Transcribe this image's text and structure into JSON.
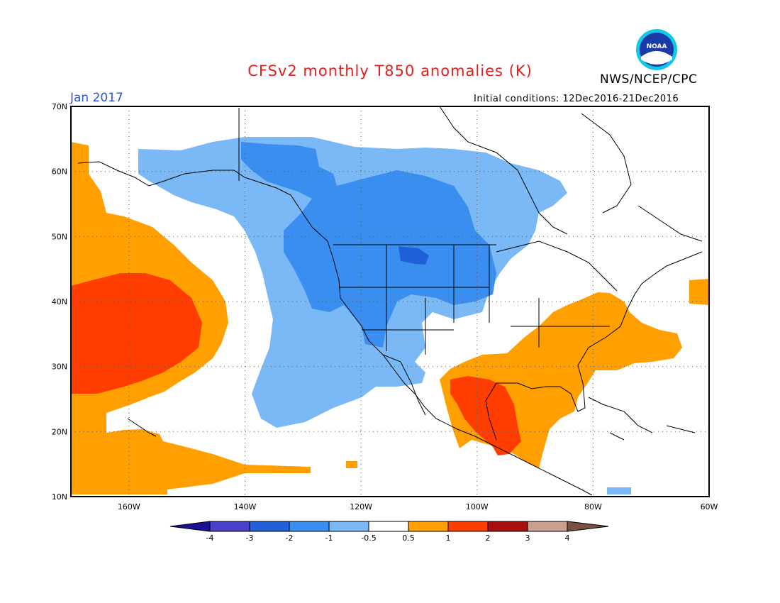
{
  "title": "CFSv2 monthly T850 anomalies (K)",
  "agency": "NWS/NCEP/CPC",
  "logo_text": "NOAA",
  "forecast_month": "Jan 2017",
  "initial_conditions": "Initial conditions: 12Dec2016-21Dec2016",
  "axes": {
    "lat_labels": [
      "70N",
      "60N",
      "50N",
      "40N",
      "30N",
      "20N",
      "10N"
    ],
    "lon_labels": [
      "160W",
      "140W",
      "120W",
      "100W",
      "80W",
      "60W"
    ]
  },
  "colorbar": {
    "colors": [
      "#1a0f96",
      "#4a3fc8",
      "#1f60d8",
      "#3a8ef0",
      "#7ab8f6",
      "#ffffff",
      "#ffa000",
      "#ff3d00",
      "#a80e0e",
      "#c9a090",
      "#7a5040"
    ],
    "labels": [
      "-4",
      "-3",
      "-2",
      "-1",
      "-0.5",
      "0.5",
      "1",
      "2",
      "3",
      "4"
    ]
  },
  "colors": {
    "title": "#e0201e",
    "month": "#2a55d8",
    "cold1": "#7ab8f6",
    "cold2": "#3a8ef0",
    "cold3": "#1f60d8",
    "warm1": "#ffa000",
    "warm2": "#ff3d00"
  }
}
